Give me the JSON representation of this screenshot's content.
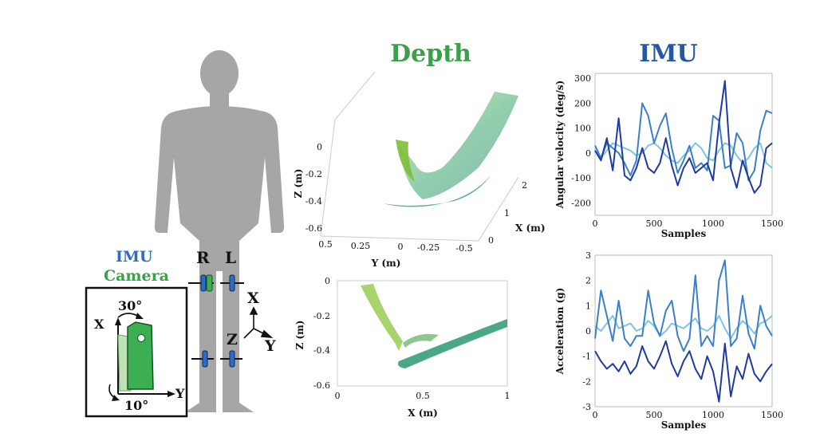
{
  "titles": {
    "depth": "Depth",
    "imu": "IMU"
  },
  "legend": {
    "imu": "IMU",
    "camera": "Camera"
  },
  "body_labels": {
    "right": "R",
    "left": "L"
  },
  "frame_axes": {
    "x": "X",
    "y": "Y",
    "z": "Z"
  },
  "inset": {
    "x": "X",
    "y": "Y",
    "tilt": "30°",
    "rot": "10°"
  },
  "colors": {
    "depth_green": "#3aa14a",
    "imu_blue": "#2457a8",
    "silhouette": "#a6a6a6",
    "imu_box": "#2b6cc4",
    "camera_box": "#3caf52"
  },
  "depth3d": {
    "zlabel": "Z (m)",
    "ylabel": "Y (m)",
    "xlabel": "X (m)",
    "zticks": [
      "0",
      "-0.2",
      "-0.4",
      "-0.6"
    ],
    "yticks": [
      "0.5",
      "0.25",
      "0",
      "-0.25",
      "-0.5"
    ],
    "xticks": [
      "0",
      "1",
      "2"
    ]
  },
  "depth2d": {
    "zlabel": "Z (m)",
    "xlabel": "X (m)",
    "zticks": [
      "0",
      "-0.2",
      "-0.4",
      "-0.6"
    ],
    "xticks": [
      "0",
      "0.5",
      "1"
    ],
    "xlim": [
      0,
      1
    ],
    "ylim": [
      -0.6,
      0.02
    ]
  },
  "chart_data": [
    {
      "type": "line",
      "ylabel": "Angular velocity (deg/s)",
      "xlabel": "Samples",
      "xlim": [
        0,
        1500
      ],
      "ylim": [
        -250,
        320
      ],
      "xticks": [
        "0",
        "500",
        "1000",
        "1500"
      ],
      "yticks": [
        "300",
        "200",
        "100",
        "0",
        "-100",
        "-200"
      ],
      "x": [
        0,
        50,
        100,
        150,
        200,
        250,
        300,
        350,
        400,
        450,
        500,
        550,
        600,
        650,
        700,
        750,
        800,
        850,
        900,
        950,
        1000,
        1050,
        1100,
        1150,
        1200,
        1250,
        1300,
        1350,
        1400,
        1450,
        1500
      ],
      "series": [
        {
          "color": "#1f3aa0",
          "values": [
            10,
            -30,
            60,
            -70,
            140,
            -90,
            -110,
            -60,
            20,
            -60,
            -80,
            -40,
            60,
            -50,
            -130,
            -60,
            -20,
            -80,
            -60,
            -40,
            -110,
            120,
            290,
            -60,
            -140,
            -30,
            -100,
            -160,
            -130,
            20,
            40
          ]
        },
        {
          "color": "#3a7fc8",
          "values": [
            30,
            -20,
            40,
            20,
            0,
            -40,
            -90,
            -30,
            200,
            150,
            40,
            110,
            160,
            20,
            -80,
            -30,
            30,
            -60,
            -40,
            -70,
            150,
            130,
            -60,
            -50,
            80,
            40,
            -110,
            -70,
            90,
            170,
            160
          ]
        },
        {
          "color": "#7fc4e8",
          "values": [
            10,
            -20,
            10,
            40,
            30,
            20,
            10,
            -10,
            0,
            30,
            40,
            20,
            -10,
            -30,
            -40,
            -10,
            10,
            40,
            20,
            -20,
            -30,
            10,
            40,
            30,
            -10,
            -40,
            -20,
            20,
            40,
            -40,
            -60
          ]
        }
      ]
    },
    {
      "type": "line",
      "ylabel": "Acceleration (g)",
      "xlabel": "Samples",
      "xlim": [
        0,
        1500
      ],
      "ylim": [
        -3,
        3
      ],
      "xticks": [
        "0",
        "500",
        "1000",
        "1500"
      ],
      "yticks": [
        "3",
        "2",
        "1",
        "0",
        "-1",
        "-2",
        "-3"
      ],
      "x": [
        0,
        50,
        100,
        150,
        200,
        250,
        300,
        350,
        400,
        450,
        500,
        550,
        600,
        650,
        700,
        750,
        800,
        850,
        900,
        950,
        1000,
        1050,
        1100,
        1150,
        1200,
        1250,
        1300,
        1350,
        1400,
        1450,
        1500
      ],
      "series": [
        {
          "color": "#1f3aa0",
          "values": [
            -0.8,
            -1.2,
            -1.5,
            -1.3,
            -1.6,
            -1.2,
            -1.7,
            -1.4,
            -0.6,
            -1.2,
            -1.5,
            -1.0,
            -0.4,
            -1.3,
            -1.8,
            -1.2,
            -0.8,
            -1.5,
            -1.9,
            -1.0,
            -1.6,
            -2.8,
            -0.5,
            -2.6,
            -1.4,
            -1.9,
            -0.9,
            -1.7,
            -2.0,
            -1.6,
            -1.3
          ]
        },
        {
          "color": "#3a7fc8",
          "values": [
            -0.3,
            1.6,
            0.6,
            -0.4,
            1.2,
            -0.3,
            -0.6,
            -0.2,
            -0.2,
            1.6,
            0.3,
            -0.2,
            0.8,
            1.2,
            -0.2,
            -0.8,
            -0.3,
            2.2,
            -0.6,
            -0.2,
            -0.6,
            2.0,
            2.8,
            -0.6,
            -0.3,
            1.4,
            -0.1,
            -0.7,
            1.0,
            0.2,
            -0.2
          ]
        },
        {
          "color": "#7fc4e8",
          "values": [
            0.2,
            0.0,
            0.3,
            0.6,
            0.1,
            0.2,
            0.3,
            0.0,
            0.1,
            0.4,
            0.2,
            -0.2,
            0.0,
            0.3,
            0.2,
            0.1,
            0.3,
            0.5,
            0.1,
            0.0,
            0.2,
            0.6,
            0.1,
            -0.3,
            0.1,
            0.4,
            0.2,
            -0.1,
            0.3,
            0.4,
            0.6
          ]
        }
      ]
    }
  ]
}
